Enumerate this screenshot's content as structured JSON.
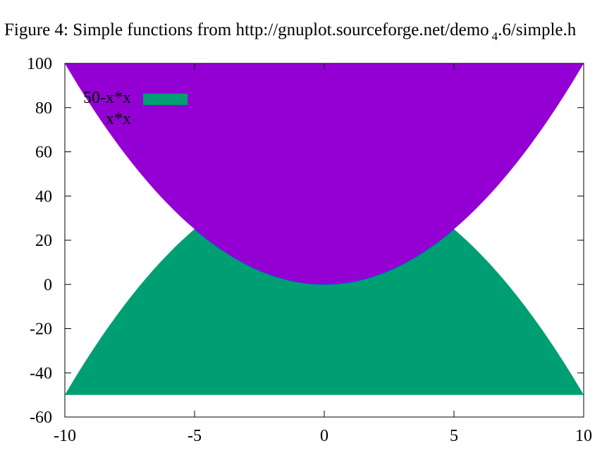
{
  "chart_data": {
    "type": "area",
    "title": "Figure 4: Simple functions from http://gnuplot.sourceforge.net/demo",
    "title_subscript": "4",
    "title_suffix": ".6/simple.h",
    "xlabel": "",
    "ylabel": "",
    "xlim": [
      -10,
      10
    ],
    "ylim": [
      -60,
      100
    ],
    "xticks": [
      -10,
      -5,
      0,
      5,
      10
    ],
    "xtick_labels": [
      "-10",
      "-5",
      "0",
      "5",
      "10"
    ],
    "yticks": [
      -60,
      -40,
      -20,
      0,
      20,
      40,
      60,
      80,
      100
    ],
    "ytick_labels": [
      "-60",
      "-40",
      "-20",
      "0",
      "20",
      "40",
      "60",
      "80",
      "100"
    ],
    "grid": false,
    "legend_position": "top-left",
    "series": [
      {
        "name": "50-x*x",
        "color": "#009e73",
        "fill_baseline": -50,
        "x": [
          -10,
          -9,
          -8,
          -7,
          -6,
          -5,
          -4,
          -3,
          -2,
          -1,
          0,
          1,
          2,
          3,
          4,
          5,
          6,
          7,
          8,
          9,
          10
        ],
        "values": [
          -50,
          -31,
          -14,
          1,
          14,
          25,
          34,
          41,
          46,
          49,
          50,
          49,
          46,
          41,
          34,
          25,
          14,
          1,
          -14,
          -31,
          -50
        ]
      },
      {
        "name": "x*x",
        "color": "#9400d3",
        "fill_to": 100,
        "x": [
          -10,
          -9,
          -8,
          -7,
          -6,
          -5,
          -4,
          -3,
          -2,
          -1,
          0,
          1,
          2,
          3,
          4,
          5,
          6,
          7,
          8,
          9,
          10
        ],
        "values": [
          100,
          81,
          64,
          49,
          36,
          25,
          16,
          9,
          4,
          1,
          0,
          1,
          4,
          9,
          16,
          25,
          36,
          49,
          64,
          81,
          100
        ]
      }
    ]
  }
}
